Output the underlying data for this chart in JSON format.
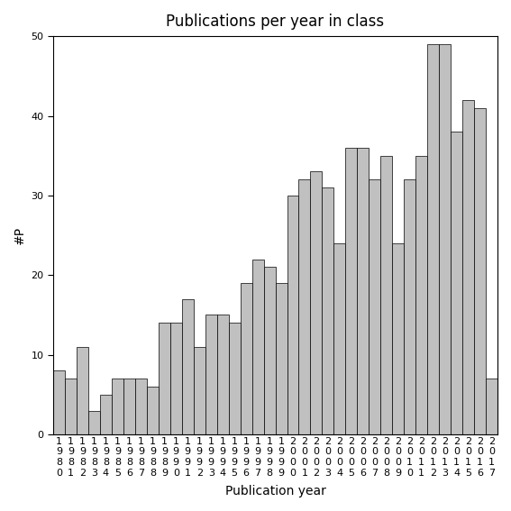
{
  "title": "Publications per year in class",
  "xlabel": "Publication year",
  "ylabel": "#P",
  "years": [
    "1980",
    "1981",
    "1982",
    "1983",
    "1984",
    "1985",
    "1986",
    "1987",
    "1988",
    "1989",
    "1990",
    "1991",
    "1992",
    "1993",
    "1994",
    "1995",
    "1996",
    "1997",
    "1998",
    "1999",
    "2000",
    "2001",
    "2002",
    "2003",
    "2004",
    "2005",
    "2006",
    "2007",
    "2008",
    "2009",
    "2010",
    "2011",
    "2012",
    "2013",
    "2014",
    "2015",
    "2016",
    "2017"
  ],
  "values": [
    8,
    7,
    11,
    3,
    5,
    7,
    7,
    7,
    6,
    14,
    14,
    17,
    11,
    15,
    15,
    14,
    19,
    22,
    21,
    19,
    30,
    32,
    33,
    31,
    24,
    36,
    36,
    32,
    35,
    24,
    32,
    35,
    49,
    49,
    38,
    42,
    41,
    7
  ],
  "bar_color": "#c0c0c0",
  "bar_edgecolor": "#000000",
  "ylim": [
    0,
    50
  ],
  "yticks": [
    0,
    10,
    20,
    30,
    40,
    50
  ],
  "title_fontsize": 12,
  "label_fontsize": 10,
  "tick_fontsize": 8
}
